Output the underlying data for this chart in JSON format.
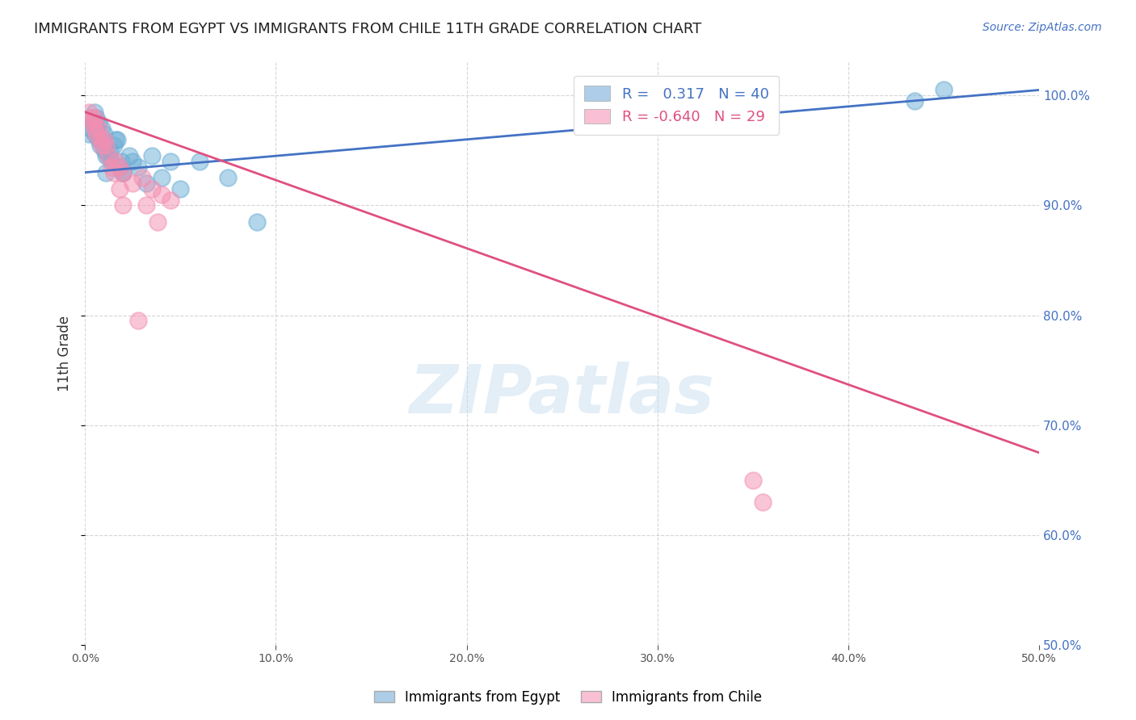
{
  "title": "IMMIGRANTS FROM EGYPT VS IMMIGRANTS FROM CHILE 11TH GRADE CORRELATION CHART",
  "source": "Source: ZipAtlas.com",
  "ylabel": "11th Grade",
  "x_min": 0.0,
  "x_max": 50.0,
  "y_min": 50.0,
  "y_max": 103.0,
  "y_ticks": [
    50.0,
    60.0,
    70.0,
    80.0,
    90.0,
    100.0
  ],
  "x_ticks": [
    0.0,
    10.0,
    20.0,
    30.0,
    40.0,
    50.0
  ],
  "egypt_R": "0.317",
  "egypt_N": 40,
  "chile_R": "-0.640",
  "chile_N": 29,
  "egypt_color": "#6baed6",
  "chile_color": "#f48fb1",
  "egypt_scatter_x": [
    0.2,
    0.3,
    0.3,
    0.4,
    0.5,
    0.5,
    0.6,
    0.7,
    0.7,
    0.8,
    0.8,
    0.9,
    1.0,
    1.0,
    1.1,
    1.2,
    1.3,
    1.4,
    1.5,
    1.6,
    1.7,
    1.8,
    2.0,
    2.3,
    2.5,
    2.8,
    3.5,
    4.5,
    6.0,
    7.5,
    9.0,
    3.2,
    4.0,
    5.0,
    2.0,
    1.9,
    1.1,
    0.6,
    45.0,
    43.5
  ],
  "egypt_scatter_y": [
    96.5,
    98.0,
    97.0,
    97.5,
    98.5,
    96.5,
    97.0,
    96.0,
    97.5,
    96.0,
    95.5,
    97.0,
    96.5,
    95.0,
    94.5,
    94.5,
    95.0,
    94.0,
    95.5,
    96.0,
    96.0,
    93.5,
    93.0,
    94.5,
    94.0,
    93.5,
    94.5,
    94.0,
    94.0,
    92.5,
    88.5,
    92.0,
    92.5,
    91.5,
    93.0,
    94.0,
    93.0,
    98.0,
    100.5,
    99.5
  ],
  "chile_scatter_x": [
    0.2,
    0.3,
    0.4,
    0.5,
    0.6,
    0.7,
    0.8,
    0.9,
    1.0,
    1.1,
    1.2,
    1.4,
    1.5,
    1.6,
    1.8,
    2.0,
    2.5,
    3.0,
    3.5,
    4.0,
    4.5,
    2.0,
    3.2,
    0.5,
    1.8,
    35.0,
    3.8,
    35.5,
    2.8
  ],
  "chile_scatter_y": [
    98.5,
    98.0,
    97.5,
    97.0,
    96.5,
    97.0,
    96.0,
    95.5,
    96.0,
    95.5,
    94.5,
    93.5,
    93.0,
    94.0,
    93.5,
    93.0,
    92.0,
    92.5,
    91.5,
    91.0,
    90.5,
    90.0,
    90.0,
    98.0,
    91.5,
    65.0,
    88.5,
    63.0,
    79.5
  ],
  "egypt_trend_x": [
    0.0,
    50.0
  ],
  "egypt_trend_y": [
    93.0,
    100.5
  ],
  "chile_trend_x": [
    0.0,
    50.0
  ],
  "chile_trend_y": [
    98.5,
    67.5
  ],
  "watermark": "ZIPatlas",
  "egypt_legend_color": "#aecde8",
  "chile_legend_color": "#f9c0d5",
  "title_fontsize": 13,
  "axis_color": "#4472c4",
  "ylabel_color": "#333333",
  "legend_R_egypt_color": "#4472c4",
  "legend_R_chile_color": "#e05080"
}
